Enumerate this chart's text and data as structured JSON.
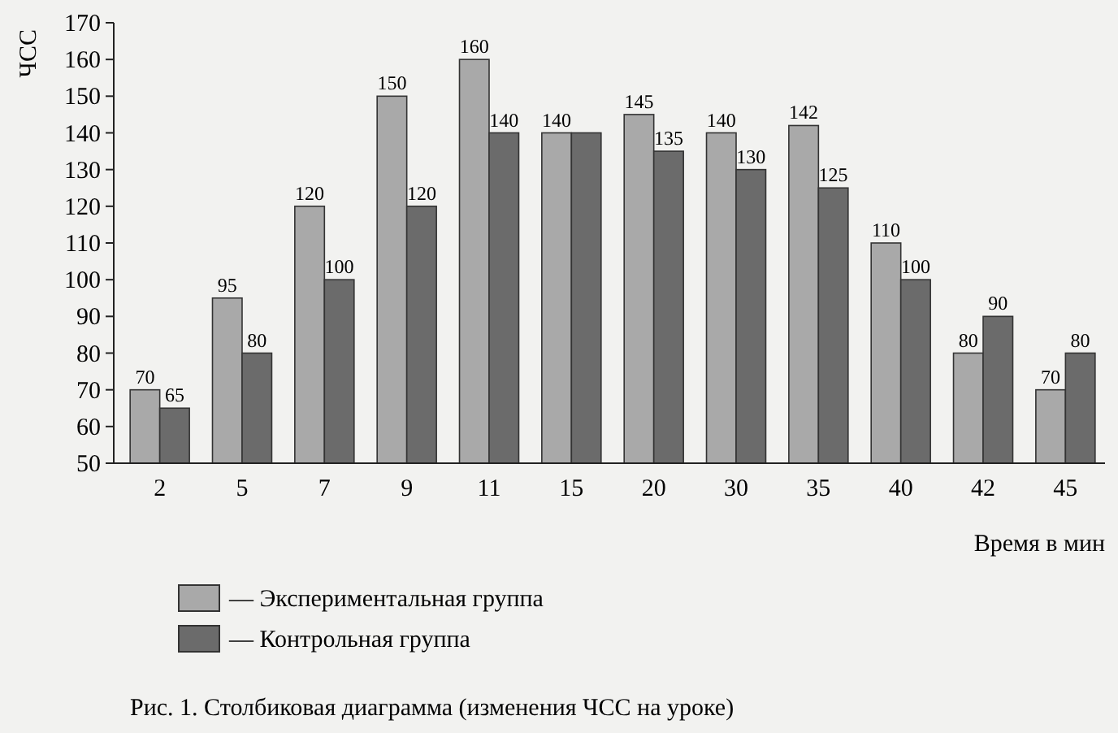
{
  "chart_data": {
    "type": "bar",
    "title": "Рис. 1. Столбиковая диаграмма (изменения ЧСС на уроке)",
    "ylabel": "ЧСС",
    "xlabel": "Время в мин",
    "categories": [
      "2",
      "5",
      "7",
      "9",
      "11",
      "15",
      "20",
      "30",
      "35",
      "40",
      "42",
      "45"
    ],
    "series": [
      {
        "name": "— Экспериментальная группа",
        "color": "#a9a9a9",
        "values": [
          70,
          95,
          120,
          150,
          160,
          140,
          145,
          140,
          142,
          110,
          80,
          70
        ],
        "value_labels": [
          "70",
          "95",
          "120",
          "150",
          "160",
          "140",
          "145",
          "140",
          "142",
          "110",
          "80",
          "70"
        ]
      },
      {
        "name": "— Контрольная группа",
        "color": "#6b6b6b",
        "values": [
          65,
          80,
          100,
          120,
          140,
          140,
          135,
          130,
          125,
          100,
          90,
          80
        ],
        "value_labels": [
          "65",
          "80",
          "100",
          "120",
          "140",
          null,
          "135",
          "130",
          "125",
          "100",
          "90",
          "80"
        ]
      }
    ],
    "ylim": [
      50,
      170
    ],
    "yticks": [
      50,
      60,
      70,
      80,
      90,
      100,
      110,
      120,
      130,
      140,
      150,
      160,
      170
    ],
    "grid": false,
    "legend": "bottom left"
  }
}
